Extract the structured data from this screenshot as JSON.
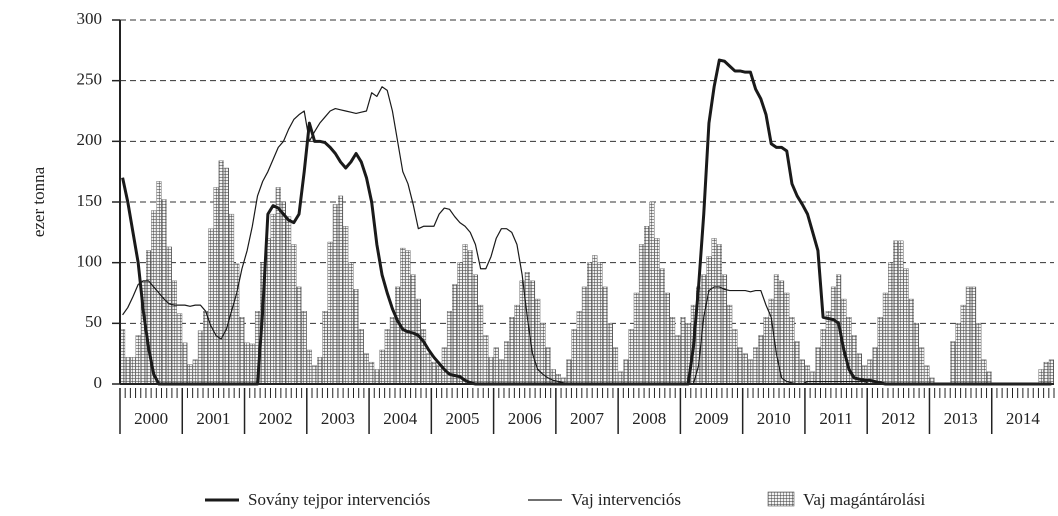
{
  "chart_data": {
    "type": "bar_line",
    "y_label": "ezer tonna",
    "year_labels": [
      "2000",
      "2001",
      "2002",
      "2003",
      "2004",
      "2005",
      "2006",
      "2007",
      "2008",
      "2009",
      "2010",
      "2011",
      "2012",
      "2013",
      "2014"
    ],
    "months_per_year": 12,
    "ylim": [
      0,
      300
    ],
    "yticks": [
      0,
      50,
      100,
      150,
      200,
      250,
      300
    ],
    "grid": true,
    "series": [
      {
        "name": "Sovány tejpor intervenciós",
        "type": "line",
        "color": "#1a1a1a",
        "line_width": 3,
        "values": [
          170,
          150,
          125,
          100,
          60,
          30,
          8,
          0,
          0,
          0,
          0,
          0,
          0,
          0,
          0,
          0,
          0,
          0,
          0,
          0,
          0,
          0,
          0,
          0,
          0,
          0,
          0,
          60,
          140,
          147,
          145,
          140,
          135,
          133,
          140,
          175,
          215,
          200,
          200,
          199,
          195,
          190,
          183,
          178,
          183,
          190,
          183,
          170,
          150,
          115,
          90,
          75,
          62,
          52,
          45,
          43,
          42,
          40,
          35,
          28,
          22,
          17,
          12,
          8,
          7,
          6,
          3,
          1,
          0,
          0,
          0,
          0,
          0,
          0,
          0,
          0,
          0,
          0,
          0,
          0,
          0,
          0,
          0,
          0,
          0,
          0,
          0,
          0,
          0,
          0,
          0,
          0,
          0,
          0,
          0,
          0,
          0,
          0,
          0,
          0,
          0,
          0,
          0,
          0,
          0,
          0,
          0,
          0,
          0,
          0,
          30,
          80,
          140,
          215,
          245,
          267,
          266,
          262,
          258,
          258,
          257,
          257,
          243,
          235,
          222,
          198,
          195,
          195,
          192,
          165,
          155,
          148,
          140,
          125,
          110,
          55,
          54,
          53,
          50,
          28,
          12,
          5,
          4,
          3,
          3,
          2,
          1,
          0,
          0,
          0,
          0,
          0,
          0,
          0,
          0,
          0,
          0,
          0,
          0,
          0,
          0,
          0,
          0,
          0,
          0,
          0,
          0,
          0,
          0,
          0,
          0,
          0,
          0,
          0,
          0,
          0,
          0,
          0,
          0,
          0
        ]
      },
      {
        "name": "Vaj intervenciós",
        "type": "line",
        "color": "#1a1a1a",
        "line_width": 1.2,
        "values": [
          57,
          63,
          72,
          82,
          85,
          85,
          80,
          75,
          70,
          66,
          65,
          65,
          65,
          64,
          65,
          65,
          60,
          48,
          40,
          37,
          45,
          60,
          75,
          95,
          110,
          130,
          155,
          167,
          175,
          185,
          195,
          200,
          210,
          218,
          222,
          225,
          200,
          208,
          215,
          220,
          225,
          227,
          226,
          225,
          224,
          223,
          224,
          225,
          240,
          237,
          245,
          242,
          225,
          200,
          175,
          165,
          148,
          128,
          130,
          130,
          130,
          140,
          145,
          144,
          138,
          133,
          130,
          125,
          115,
          95,
          95,
          105,
          120,
          128,
          128,
          125,
          115,
          90,
          55,
          25,
          12,
          8,
          5,
          3,
          2,
          1,
          0,
          0,
          0,
          0,
          0,
          0,
          0,
          0,
          0,
          0,
          0,
          0,
          0,
          0,
          0,
          0,
          0,
          0,
          0,
          0,
          0,
          0,
          0,
          0,
          0,
          15,
          55,
          77,
          80,
          80,
          78,
          77,
          77,
          77,
          77,
          76,
          77,
          77,
          65,
          55,
          25,
          5,
          2,
          1,
          0,
          0,
          2,
          2,
          2,
          2,
          2,
          2,
          2,
          2,
          2,
          2,
          2,
          2,
          0,
          0,
          0,
          0,
          0,
          0,
          0,
          0,
          0,
          0,
          0,
          0,
          0,
          0,
          0,
          0,
          0,
          0,
          0,
          0,
          0,
          0,
          0,
          0,
          0,
          0,
          0,
          0,
          0,
          0,
          0,
          0,
          0,
          0,
          0,
          0
        ]
      },
      {
        "name": "Vaj magántárolási",
        "type": "bar",
        "color": "#555555",
        "values": [
          45,
          22,
          22,
          40,
          85,
          110,
          143,
          167,
          152,
          113,
          85,
          58,
          34,
          16,
          20,
          44,
          60,
          128,
          162,
          184,
          178,
          140,
          99,
          55,
          34,
          33,
          60,
          100,
          120,
          140,
          162,
          150,
          138,
          115,
          80,
          60,
          28,
          15,
          22,
          60,
          117,
          148,
          155,
          130,
          100,
          78,
          45,
          25,
          18,
          12,
          28,
          45,
          55,
          80,
          112,
          110,
          90,
          70,
          45,
          25,
          18,
          15,
          30,
          60,
          82,
          100,
          115,
          110,
          90,
          65,
          40,
          22,
          30,
          20,
          35,
          55,
          65,
          85,
          92,
          85,
          70,
          50,
          30,
          12,
          8,
          5,
          20,
          45,
          60,
          80,
          100,
          106,
          100,
          80,
          50,
          30,
          10,
          20,
          45,
          75,
          115,
          130,
          150,
          120,
          95,
          75,
          55,
          40,
          55,
          50,
          65,
          80,
          90,
          105,
          120,
          115,
          90,
          65,
          45,
          30,
          25,
          20,
          30,
          40,
          55,
          70,
          90,
          85,
          75,
          55,
          35,
          20,
          15,
          10,
          30,
          45,
          60,
          80,
          90,
          70,
          55,
          40,
          25,
          15,
          20,
          30,
          55,
          75,
          100,
          118,
          118,
          95,
          70,
          50,
          30,
          15,
          5,
          0,
          0,
          0,
          35,
          50,
          65,
          80,
          80,
          50,
          20,
          10,
          0,
          0,
          0,
          0,
          0,
          0,
          0,
          0,
          0,
          12,
          18,
          20
        ]
      }
    ],
    "legend": "bottom"
  }
}
